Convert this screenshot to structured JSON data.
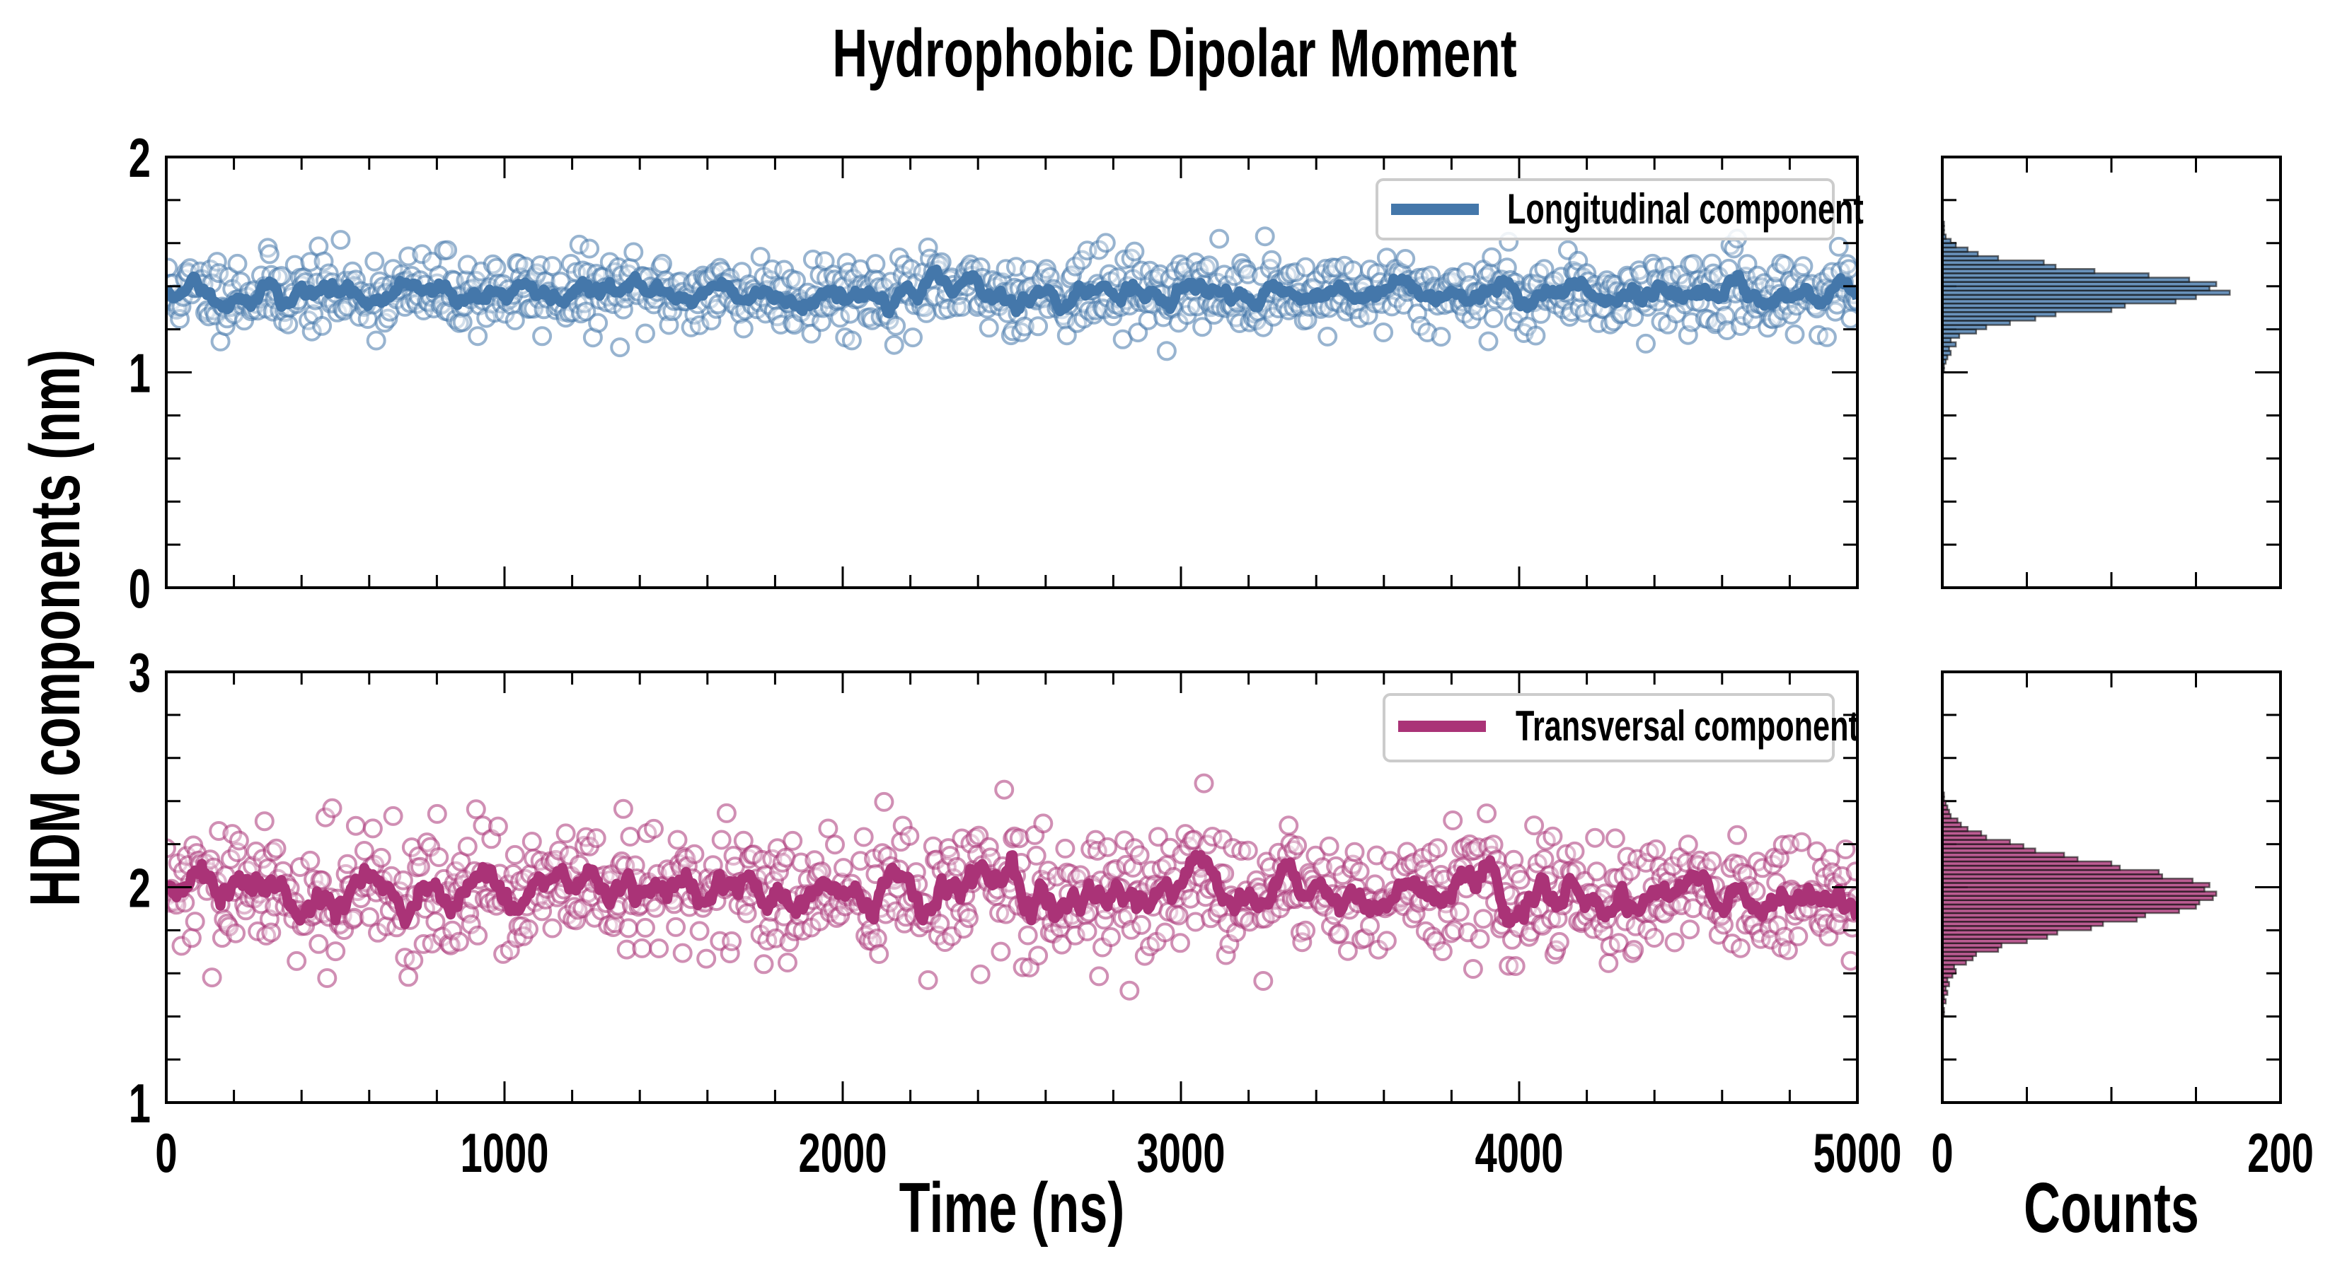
{
  "chart_data": {
    "type": "scatter",
    "title": "Hydrophobic Dipolar Moment",
    "ylabel": "HDM components (nm)",
    "xlabel": "Time (ns)",
    "hist_xlabel": "Counts",
    "xlim": [
      0,
      5000
    ],
    "xticks": [
      0,
      1000,
      2000,
      3000,
      4000,
      5000
    ],
    "hist_xlim": [
      0,
      200
    ],
    "hist_xticks": [
      0,
      200
    ],
    "panels": [
      {
        "name": "longitudinal",
        "legend": "Longitudinal component",
        "color": "#4477aa",
        "ylim": [
          0,
          2
        ],
        "yticks": [
          0,
          1,
          2
        ],
        "scatter": {
          "n": 1000,
          "mean": 1.37,
          "sd": 0.09,
          "seed": 11
        },
        "running_mean_window": 5,
        "histogram": {
          "bin_start": 1.01,
          "bin_width": 0.02,
          "counts": [
            1,
            1,
            2,
            3,
            5,
            4,
            8,
            5,
            10,
            20,
            26,
            40,
            55,
            67,
            100,
            108,
            138,
            150,
            170,
            158,
            162,
            146,
            122,
            90,
            67,
            60,
            33,
            21,
            15,
            8,
            5,
            2,
            1,
            1,
            1
          ]
        }
      },
      {
        "name": "transversal",
        "legend": "Transversal component",
        "color": "#aa3377",
        "ylim": [
          1,
          3
        ],
        "yticks": [
          1,
          2,
          3
        ],
        "scatter": {
          "n": 1000,
          "mean": 1.97,
          "sd": 0.15,
          "seed": 29
        },
        "running_mean_window": 5,
        "histogram": {
          "bin_start": 1.41,
          "bin_width": 0.02,
          "counts": [
            1,
            1,
            0,
            2,
            1,
            3,
            2,
            4,
            3,
            6,
            8,
            7,
            14,
            18,
            20,
            33,
            35,
            50,
            62,
            68,
            88,
            95,
            115,
            120,
            140,
            150,
            152,
            160,
            162,
            155,
            158,
            148,
            130,
            128,
            105,
            100,
            80,
            72,
            55,
            48,
            40,
            26,
            23,
            15,
            11,
            9,
            5,
            4,
            3,
            2,
            1,
            1
          ]
        }
      }
    ]
  }
}
